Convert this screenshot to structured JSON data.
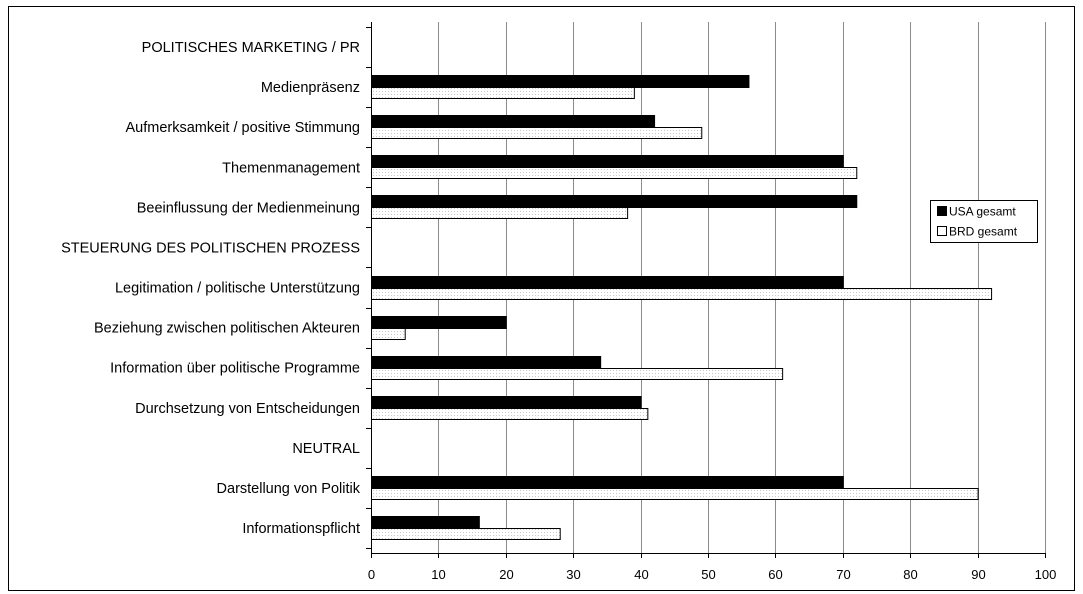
{
  "chart_data": {
    "type": "bar",
    "orientation": "horizontal",
    "categories": [
      "POLITISCHES MARKETING / PR",
      "Medienpräsenz",
      "Aufmerksamkeit / positive Stimmung",
      "Themenmanagement",
      "Beeinflussung der Medienmeinung",
      "STEUERUNG DES POLITISCHEN PROZESS",
      "Legitimation / politische Unterstützung",
      "Beziehung zwischen politischen Akteuren",
      "Information über politische Programme",
      "Durchsetzung von Entscheidungen",
      "NEUTRAL",
      "Darstellung von Politik",
      "Informationspflicht"
    ],
    "series": [
      {
        "name": "USA gesamt",
        "color": "#000000",
        "values": [
          null,
          56,
          42,
          70,
          72,
          null,
          70,
          20,
          34,
          40,
          null,
          70,
          16
        ]
      },
      {
        "name": "BRD gesamt",
        "color": "#ffffff",
        "values": [
          null,
          39,
          49,
          72,
          38,
          null,
          92,
          5,
          61,
          41,
          null,
          90,
          28
        ]
      }
    ],
    "xlim": [
      0,
      100
    ],
    "xticks": [
      0,
      10,
      20,
      30,
      40,
      50,
      60,
      70,
      80,
      90,
      100
    ],
    "grid": true,
    "legend": "right"
  }
}
